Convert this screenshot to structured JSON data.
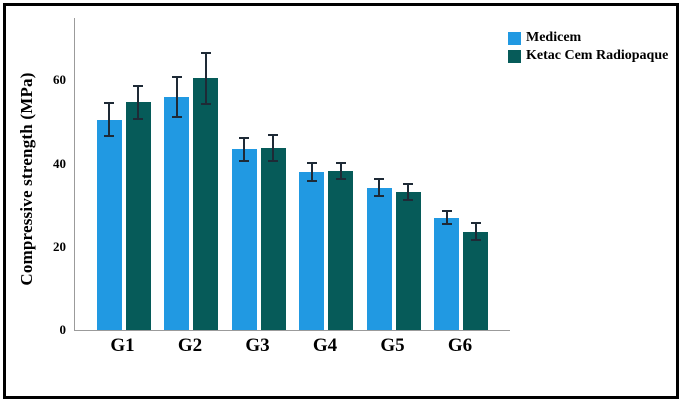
{
  "figure": {
    "background": "#ffffff",
    "frame_color": "#000000"
  },
  "colors": {
    "medicem": "#2199E2",
    "ketac": "#065B59",
    "axis_line": "#9B9B9B",
    "error_bar": "#1E2A36",
    "text": "#000000"
  },
  "chart_data": {
    "type": "bar",
    "title": "",
    "categories": [
      "G1",
      "G2",
      "G3",
      "G4",
      "G5",
      "G6"
    ],
    "series": [
      {
        "name": "Medicem",
        "color_key": "medicem",
        "values": [
          50.5,
          56.0,
          43.4,
          37.9,
          34.2,
          27.0
        ],
        "errors": [
          4.2,
          5.0,
          2.9,
          2.4,
          2.3,
          1.8
        ]
      },
      {
        "name": "Ketac Cem Radiopaque",
        "color_key": "ketac",
        "values": [
          54.8,
          60.5,
          43.7,
          38.2,
          33.2,
          23.6
        ],
        "errors": [
          4.2,
          6.3,
          3.3,
          2.2,
          2.1,
          2.3
        ]
      }
    ],
    "xlabel": "",
    "ylabel": "Compressive strength (MPa)",
    "yticks": [
      0,
      20,
      40,
      60
    ],
    "ylim": [
      0,
      75
    ],
    "grid": false,
    "legend_position": "top-right",
    "error_bars": true
  }
}
